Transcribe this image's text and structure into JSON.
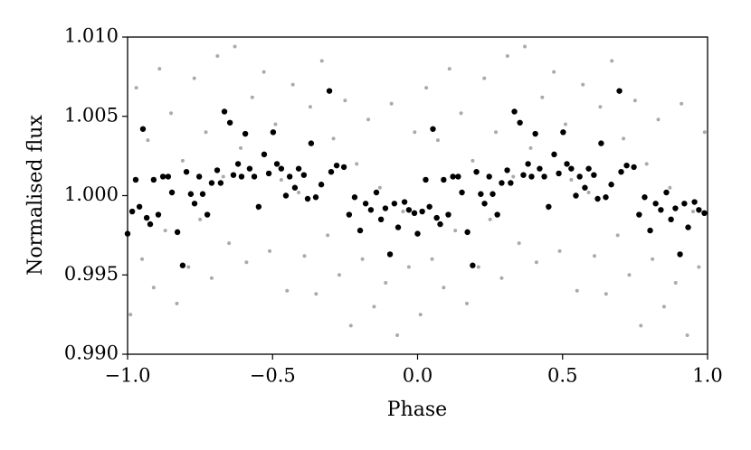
{
  "chart_data": {
    "type": "scatter",
    "xlabel": "Phase",
    "ylabel": "Normalised flux",
    "xlim": [
      -1.0,
      1.0
    ],
    "ylim": [
      0.99,
      1.01
    ],
    "xticks": [
      {
        "value": -1.0,
        "label": "−1.0"
      },
      {
        "value": -0.5,
        "label": "−0.5"
      },
      {
        "value": 0,
        "label": "0.0"
      },
      {
        "value": 0.5,
        "label": "0.5"
      },
      {
        "value": 1.0,
        "label": "1.0"
      }
    ],
    "yticks": [
      {
        "value": 0.99,
        "label": "0.990"
      },
      {
        "value": 0.995,
        "label": "0.995"
      },
      {
        "value": 1.0,
        "label": "1.000"
      },
      {
        "value": 1.005,
        "label": "1.005"
      },
      {
        "value": 1.01,
        "label": "1.010"
      }
    ],
    "series": [
      {
        "color": "#aaaaaa",
        "size": 2,
        "x": [
          -0.99,
          -0.97,
          -0.95,
          -0.93,
          -0.91,
          -0.89,
          -0.87,
          -0.85,
          -0.83,
          -0.81,
          -0.79,
          -0.77,
          -0.75,
          -0.73,
          -0.71,
          -0.69,
          -0.67,
          -0.65,
          -0.63,
          -0.61,
          -0.59,
          -0.57,
          -0.55,
          -0.53,
          -0.51,
          -0.49,
          -0.47,
          -0.45,
          -0.43,
          -0.41,
          -0.39,
          -0.37,
          -0.35,
          -0.33,
          -0.31,
          -0.29,
          -0.27,
          -0.25,
          -0.23,
          -0.21,
          -0.19,
          -0.17,
          -0.15,
          -0.13,
          -0.11,
          -0.09,
          -0.07,
          -0.05,
          -0.03,
          -0.01,
          0.01,
          0.03,
          0.05,
          0.07,
          0.09,
          0.11,
          0.13,
          0.15,
          0.17,
          0.19,
          0.21,
          0.23,
          0.25,
          0.27,
          0.29,
          0.31,
          0.33,
          0.35,
          0.37,
          0.39,
          0.41,
          0.43,
          0.45,
          0.47,
          0.49,
          0.51,
          0.53,
          0.55,
          0.57,
          0.59,
          0.61,
          0.63,
          0.65,
          0.67,
          0.69,
          0.71,
          0.73,
          0.75,
          0.77,
          0.79,
          0.81,
          0.83,
          0.85,
          0.87,
          0.89,
          0.91,
          0.93,
          0.95,
          0.97,
          0.99
        ],
        "values": [
          0.9925,
          1.0068,
          0.996,
          1.0035,
          0.9942,
          1.008,
          0.9978,
          1.0052,
          0.9932,
          1.0022,
          0.9955,
          1.0074,
          0.9985,
          1.004,
          0.9948,
          1.0088,
          1.0012,
          0.997,
          1.0094,
          1.003,
          0.9958,
          1.0062,
          0.9992,
          1.0078,
          0.9965,
          1.0045,
          1.001,
          0.994,
          1.007,
          1.0002,
          0.9962,
          1.0056,
          0.9938,
          1.0085,
          0.9975,
          1.0036,
          0.995,
          1.006,
          0.9918,
          1.002,
          0.996,
          1.0048,
          0.993,
          1.0005,
          0.9945,
          1.0058,
          0.9912,
          0.999,
          0.9955,
          1.004,
          0.9925,
          1.0068,
          0.996,
          1.0035,
          0.9942,
          1.008,
          0.9978,
          1.0052,
          0.9932,
          1.0022,
          0.9955,
          1.0074,
          0.9985,
          1.004,
          0.9948,
          1.0088,
          1.0012,
          0.997,
          1.0094,
          1.003,
          0.9958,
          1.0062,
          0.9992,
          1.0078,
          0.9965,
          1.0045,
          1.001,
          0.994,
          1.007,
          1.0002,
          0.9962,
          1.0056,
          0.9938,
          1.0085,
          0.9975,
          1.0036,
          0.995,
          1.006,
          0.9918,
          1.002,
          0.996,
          1.0048,
          0.993,
          1.0005,
          0.9945,
          1.0058,
          0.9912,
          0.999,
          0.9955,
          1.004
        ]
      },
      {
        "color": "#000000",
        "size": 3.2,
        "x": [
          -1.0,
          -0.984,
          -0.972,
          -0.959,
          -0.947,
          -0.934,
          -0.922,
          -0.91,
          -0.894,
          -0.878,
          -0.86,
          -0.847,
          -0.828,
          -0.81,
          -0.797,
          -0.782,
          -0.769,
          -0.753,
          -0.741,
          -0.725,
          -0.71,
          -0.691,
          -0.679,
          -0.666,
          -0.647,
          -0.635,
          -0.619,
          -0.607,
          -0.594,
          -0.579,
          -0.563,
          -0.548,
          -0.529,
          -0.513,
          -0.498,
          -0.485,
          -0.47,
          -0.454,
          -0.441,
          -0.423,
          -0.41,
          -0.392,
          -0.379,
          -0.367,
          -0.351,
          -0.332,
          -0.304,
          -0.298,
          -0.279,
          -0.254,
          -0.236,
          -0.217,
          -0.198,
          -0.179,
          -0.161,
          -0.142,
          -0.126,
          -0.111,
          -0.095,
          -0.08,
          -0.067,
          -0.045,
          -0.03,
          -0.011,
          0.0,
          0.016,
          0.028,
          0.041,
          0.053,
          0.066,
          0.078,
          0.09,
          0.106,
          0.122,
          0.14,
          0.153,
          0.172,
          0.19,
          0.203,
          0.218,
          0.231,
          0.247,
          0.259,
          0.275,
          0.29,
          0.309,
          0.321,
          0.334,
          0.353,
          0.365,
          0.381,
          0.393,
          0.406,
          0.421,
          0.437,
          0.452,
          0.471,
          0.487,
          0.502,
          0.515,
          0.53,
          0.546,
          0.559,
          0.577,
          0.59,
          0.608,
          0.621,
          0.633,
          0.649,
          0.668,
          0.696,
          0.702,
          0.721,
          0.746,
          0.764,
          0.783,
          0.802,
          0.821,
          0.839,
          0.858,
          0.874,
          0.889,
          0.905,
          0.92,
          0.933,
          0.955,
          0.97,
          0.989
        ],
        "values": [
          0.9976,
          0.999,
          1.001,
          0.9993,
          1.0042,
          0.9986,
          0.9982,
          1.001,
          0.9988,
          1.0012,
          1.0012,
          1.0002,
          0.9977,
          0.9956,
          1.0015,
          1.0001,
          0.9995,
          1.0012,
          1.0001,
          0.9988,
          1.0008,
          1.0016,
          1.0008,
          1.0053,
          1.0046,
          1.0013,
          1.002,
          1.0012,
          1.0039,
          1.0017,
          1.0012,
          0.9993,
          1.0026,
          1.0014,
          1.004,
          1.002,
          1.0017,
          1.0,
          1.0012,
          1.0005,
          1.0017,
          1.0013,
          0.9998,
          1.0033,
          0.9999,
          1.0007,
          1.0066,
          1.0015,
          1.0019,
          1.0018,
          0.9988,
          0.9999,
          0.9978,
          0.9995,
          0.9991,
          1.0002,
          0.9985,
          0.9992,
          0.9963,
          0.9995,
          0.998,
          0.9996,
          0.9991,
          0.9989,
          0.9976,
          0.999,
          1.001,
          0.9993,
          1.0042,
          0.9986,
          0.9982,
          1.001,
          0.9988,
          1.0012,
          1.0012,
          1.0002,
          0.9977,
          0.9956,
          1.0015,
          1.0001,
          0.9995,
          1.0012,
          1.0001,
          0.9988,
          1.0008,
          1.0016,
          1.0008,
          1.0053,
          1.0046,
          1.0013,
          1.002,
          1.0012,
          1.0039,
          1.0017,
          1.0012,
          0.9993,
          1.0026,
          1.0014,
          1.004,
          1.002,
          1.0017,
          1.0,
          1.0012,
          1.0005,
          1.0017,
          1.0013,
          0.9998,
          1.0033,
          0.9999,
          1.0007,
          1.0066,
          1.0015,
          1.0019,
          1.0018,
          0.9988,
          0.9999,
          0.9978,
          0.9995,
          0.9991,
          1.0002,
          0.9985,
          0.9992,
          0.9963,
          0.9995,
          0.998,
          0.9996,
          0.9991,
          0.9989
        ]
      }
    ]
  }
}
